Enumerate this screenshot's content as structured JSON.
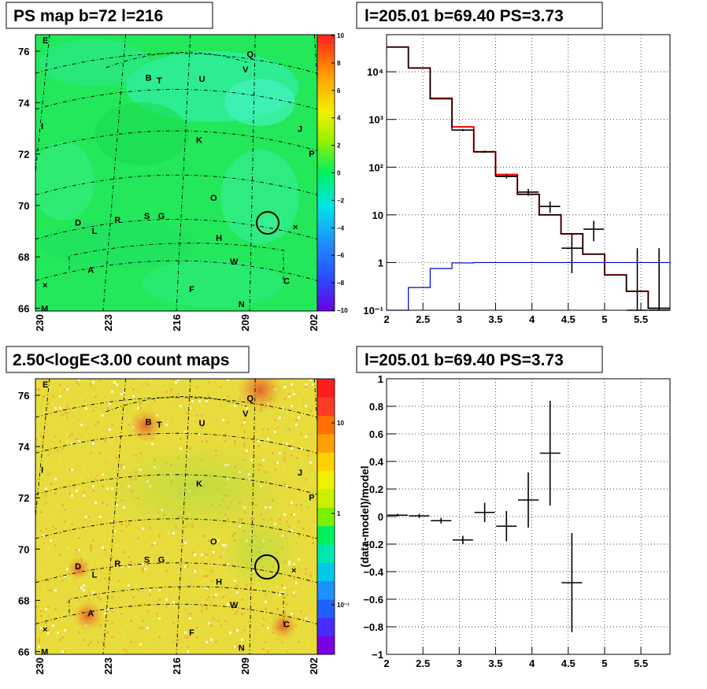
{
  "panels": {
    "ps_map": {
      "title": "PS map b=72 l=216",
      "y_ticks": [
        "76",
        "74",
        "72",
        "70",
        "68",
        "66"
      ],
      "x_ticks": [
        "230",
        "223",
        "216",
        "209",
        "202"
      ],
      "colorbar_ticks": [
        "10",
        "8",
        "6",
        "4",
        "2",
        "0",
        "−2",
        "−4",
        "−6",
        "−8",
        "−10"
      ],
      "sources": [
        "E",
        "Q",
        "V",
        "B",
        "T",
        "U",
        "I",
        "J",
        "K",
        "P",
        "O",
        "D",
        "L",
        "R",
        "S",
        "G",
        "H",
        "A",
        "W",
        "C",
        "F",
        "N",
        "M"
      ]
    },
    "count_map": {
      "title": "2.50<logE<3.00 count maps",
      "y_ticks": [
        "76",
        "74",
        "72",
        "70",
        "68",
        "66"
      ],
      "x_ticks": [
        "230",
        "223",
        "216",
        "209",
        "202"
      ],
      "colorbar_ticks": [
        "10",
        "1",
        "10⁻¹"
      ],
      "sources": [
        "E",
        "Q",
        "V",
        "B",
        "T",
        "U",
        "I",
        "J",
        "K",
        "P",
        "O",
        "D",
        "L",
        "R",
        "S",
        "G",
        "H",
        "A",
        "W",
        "C",
        "F",
        "N",
        "M"
      ]
    },
    "spectrum_title": "l=205.01 b=69.40 PS=3.73",
    "residual_title": "l=205.01 b=69.40 PS=3.73"
  },
  "chart_data": [
    {
      "type": "line",
      "title": "l=205.01 b=69.40 PS=3.73",
      "xlabel": "",
      "ylabel": "",
      "xlim": [
        2,
        5.9
      ],
      "ylim": [
        0.1,
        60000
      ],
      "y_scale": "log",
      "grid": true,
      "x_ticks": [
        "2",
        "2.5",
        "3",
        "3.5",
        "4",
        "4.5",
        "5",
        "5.5"
      ],
      "y_ticks": [
        "10⁻¹",
        "1",
        "10",
        "10²",
        "10³",
        "10⁴"
      ],
      "bin_edges": [
        2.0,
        2.3,
        2.6,
        2.9,
        3.2,
        3.5,
        3.8,
        4.1,
        4.4,
        4.7,
        5.0,
        5.3,
        5.6,
        5.9
      ],
      "series": [
        {
          "color": "#ff0000",
          "kind": "step",
          "values": [
            33000,
            12000,
            2800,
            700,
            210,
            70,
            27,
            10,
            4,
            1.5,
            0.55,
            0.25,
            0.11
          ]
        },
        {
          "color": "#000000",
          "kind": "step",
          "values": [
            33000,
            12000,
            2700,
            600,
            210,
            65,
            27,
            10,
            4,
            1.5,
            0.55,
            0.25,
            0.11
          ]
        },
        {
          "color": "#0000cc",
          "kind": "step",
          "values": [
            0.1,
            0.3,
            0.75,
            0.98,
            1.0,
            1.0,
            1.0,
            1.0,
            1.0,
            1.0,
            1.0,
            1.0,
            1.0
          ]
        },
        {
          "color": "#000000",
          "kind": "points",
          "points": [
            {
              "x": 3.05,
              "y": 600,
              "ylo": 570,
              "yhi": 630
            },
            {
              "x": 3.35,
              "y": 210,
              "ylo": 200,
              "yhi": 222
            },
            {
              "x": 3.65,
              "y": 64,
              "ylo": 58,
              "yhi": 71
            },
            {
              "x": 3.95,
              "y": 30,
              "ylo": 25,
              "yhi": 35
            },
            {
              "x": 4.25,
              "y": 15,
              "ylo": 11,
              "yhi": 19
            },
            {
              "x": 4.55,
              "y": 2,
              "ylo": 0.6,
              "yhi": 4
            },
            {
              "x": 4.85,
              "y": 5,
              "ylo": 2.8,
              "yhi": 7.5
            },
            {
              "x": 5.45,
              "y": 0.1,
              "ylo": 0.1,
              "yhi": 2
            },
            {
              "x": 5.75,
              "y": 0.1,
              "ylo": 0.1,
              "yhi": 2
            }
          ]
        }
      ]
    },
    {
      "type": "scatter",
      "title": "l=205.01 b=69.40 PS=3.73",
      "xlabel": "",
      "ylabel": "(data-model)/model",
      "xlim": [
        2,
        5.9
      ],
      "ylim": [
        -1,
        1
      ],
      "grid": true,
      "x_ticks": [
        "2",
        "2.5",
        "3",
        "3.5",
        "4",
        "4.5",
        "5",
        "5.5"
      ],
      "y_ticks": [
        "1",
        "0.8",
        "0.6",
        "0.4",
        "0.2",
        "0",
        "−0.2",
        "−0.4",
        "−0.6",
        "−0.8",
        "−1"
      ],
      "points": [
        {
          "x": 2.15,
          "y": 0.01,
          "err": 0.01
        },
        {
          "x": 2.45,
          "y": 0.005,
          "err": 0.015
        },
        {
          "x": 2.75,
          "y": -0.03,
          "err": 0.02
        },
        {
          "x": 3.05,
          "y": -0.17,
          "err": 0.03
        },
        {
          "x": 3.35,
          "y": 0.03,
          "err": 0.07
        },
        {
          "x": 3.65,
          "y": -0.07,
          "err": 0.11
        },
        {
          "x": 3.95,
          "y": 0.12,
          "err": 0.2
        },
        {
          "x": 4.25,
          "y": 0.46,
          "err": 0.38
        },
        {
          "x": 4.55,
          "y": -0.48,
          "err": 0.36
        }
      ]
    }
  ]
}
